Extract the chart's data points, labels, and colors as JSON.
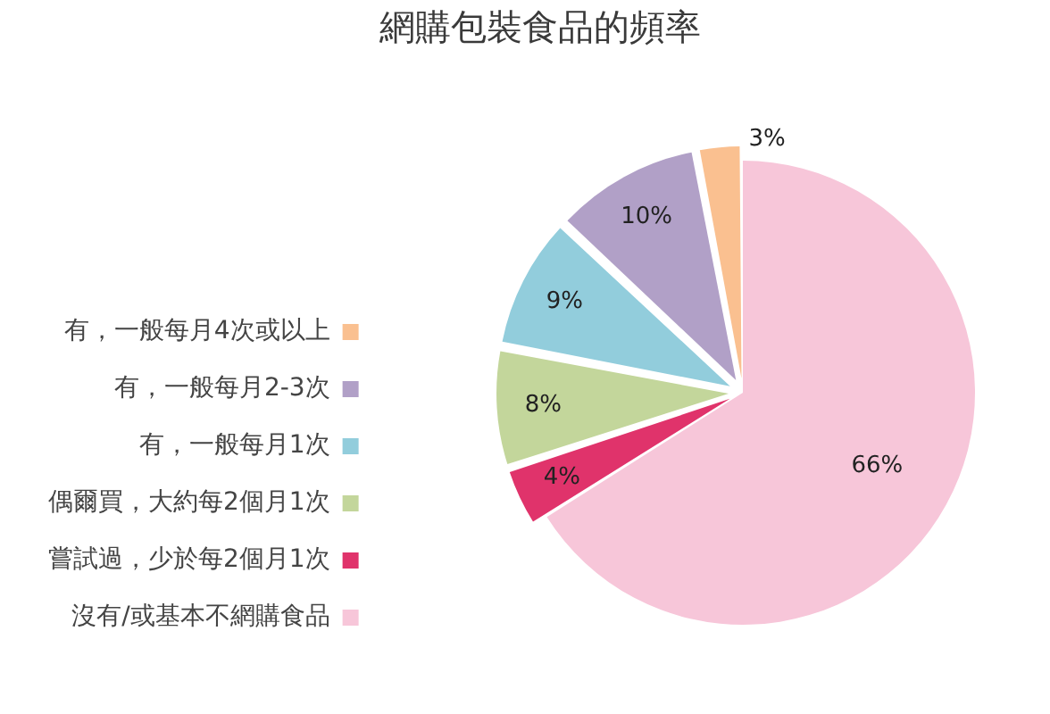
{
  "chart_data": {
    "type": "pie",
    "title": "網購包裝食品的頻率",
    "categories": [
      "沒有/或基本不網購食品",
      "嘗試過，少於每2個月1次",
      "偶爾買，大約每2個月1次",
      "有，一般每月1次",
      "有，一般每月2-3次",
      "有，一般每月4次或以上"
    ],
    "values": [
      66,
      4,
      8,
      9,
      10,
      3
    ],
    "colors": [
      "#f7c6d9",
      "#e0336b",
      "#c3d69b",
      "#92cddc",
      "#b1a0c7",
      "#fac090"
    ],
    "value_labels": [
      "66%",
      "4%",
      "8%",
      "9%",
      "10%",
      "3%"
    ],
    "legend": "left"
  }
}
